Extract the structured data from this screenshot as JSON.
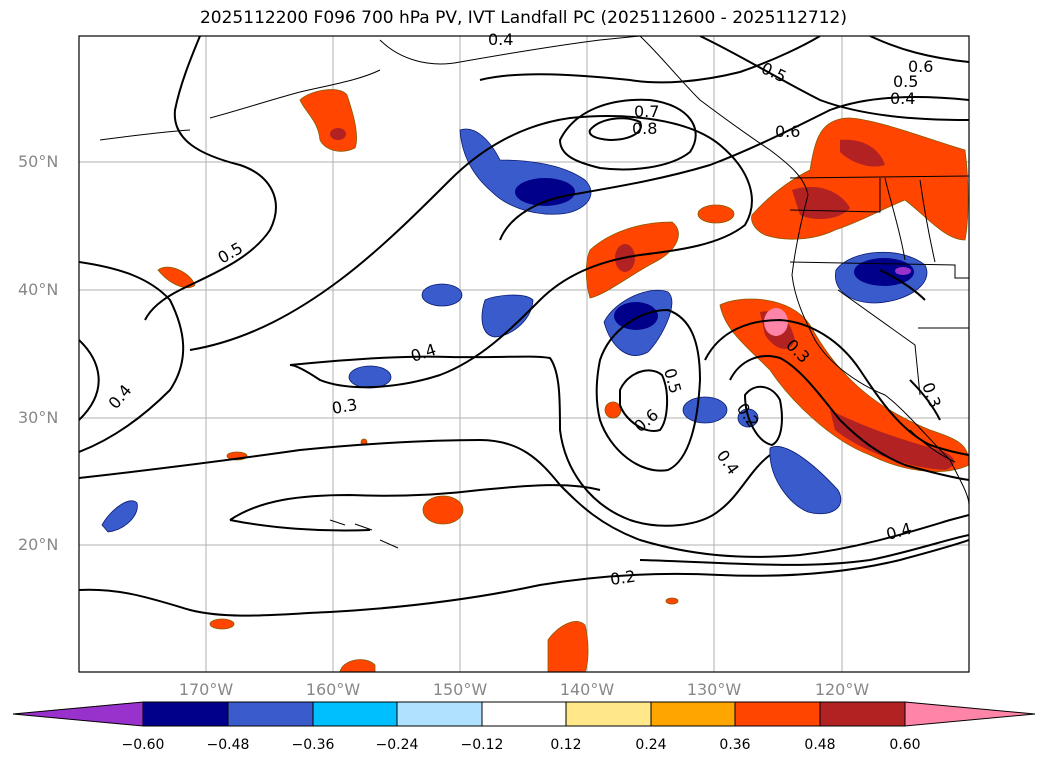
{
  "title": "2025112200 F096 700 hPa PV, IVT Landfall PC (2025112600 - 2025112712)",
  "lat_labels": [
    "50°N",
    "40°N",
    "30°N",
    "20°N"
  ],
  "lon_labels": [
    "170°W",
    "160°W",
    "150°W",
    "140°W",
    "130°W",
    "120°W"
  ],
  "contour_labels": [
    "0.4",
    "0.5",
    "0.6",
    "0.5",
    "0.4",
    "0.7",
    "0.8",
    "0.6",
    "0.5",
    "0.4",
    "0.3",
    "0.4",
    "0.5",
    "0.6",
    "0.2",
    "0.4",
    "0.3",
    "0.3",
    "0.4",
    "0.2"
  ],
  "colorbar": {
    "ticks": [
      "−0.60",
      "−0.48",
      "−0.36",
      "−0.24",
      "−0.12",
      "0.12",
      "0.24",
      "0.36",
      "0.48",
      "0.60"
    ],
    "colors": [
      "#9932cc",
      "#00008b",
      "#3a5bcc",
      "#00bfff",
      "#b0e2ff",
      "#ffffff",
      "#ffe78a",
      "#ffa500",
      "#ff4500",
      "#b22222",
      "#ff85a8"
    ]
  }
}
